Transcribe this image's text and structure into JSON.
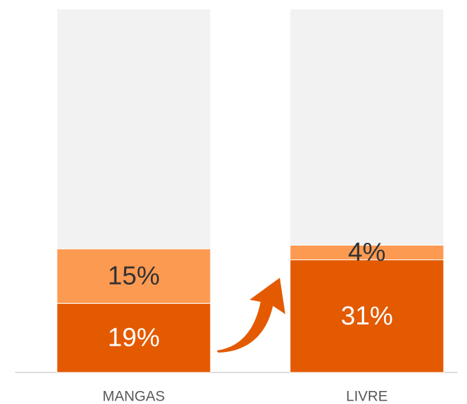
{
  "chart_data": {
    "type": "stacked_bar",
    "categories": [
      "MANGAS",
      "LIVRE"
    ],
    "series": [
      {
        "color": "#e35a00",
        "label_color": "#ffffff",
        "values": [
          19,
          31
        ],
        "value_labels": [
          "19%",
          "31%"
        ]
      },
      {
        "color": "#fd9a52",
        "label_color": "#333333",
        "values": [
          15,
          4
        ],
        "value_labels": [
          "15%",
          "4%"
        ]
      },
      {
        "color": "#f2f2f2",
        "values": [
          66,
          65
        ]
      }
    ],
    "ylim": [
      0,
      100
    ]
  }
}
